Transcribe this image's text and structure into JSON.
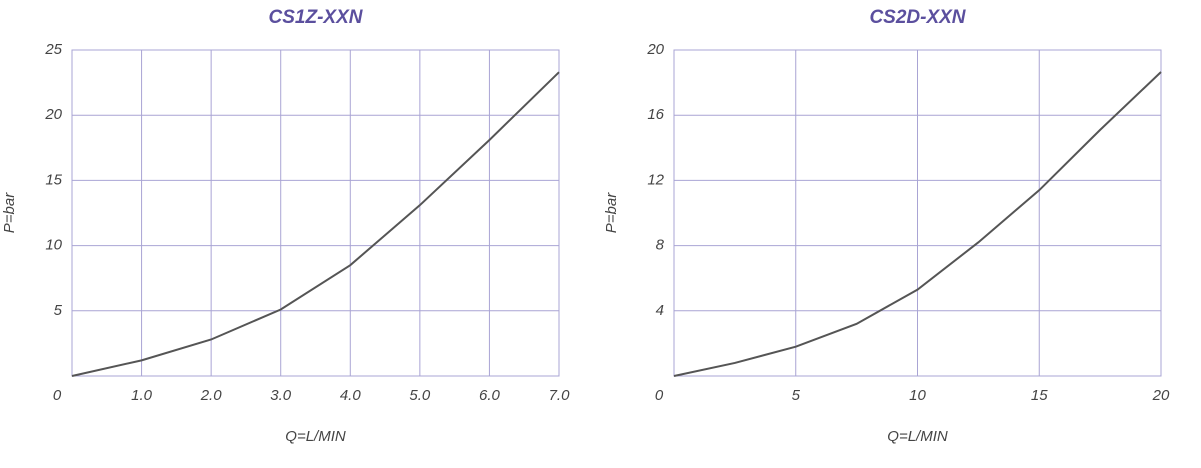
{
  "chart_data": [
    {
      "type": "line",
      "title": "CS1Z-XXN",
      "xlabel": "Q=L/MIN",
      "ylabel": "P=bar",
      "x": [
        0,
        1,
        2,
        3,
        4,
        5,
        6,
        7
      ],
      "series": [
        {
          "color": "#555555",
          "values": [
            0,
            1.2,
            2.8,
            5.1,
            8.5,
            13.1,
            18.1,
            23.3
          ]
        }
      ],
      "xlim": [
        0,
        7
      ],
      "ylim": [
        0,
        25
      ],
      "xticks": [
        0,
        {
          "value": 1,
          "label": "1.0"
        },
        {
          "value": 2,
          "label": "2.0"
        },
        {
          "value": 3,
          "label": "3.0"
        },
        {
          "value": 4,
          "label": "4.0"
        },
        {
          "value": 5,
          "label": "5.0"
        },
        {
          "value": 6,
          "label": "6.0"
        },
        {
          "value": 7,
          "label": "7.0"
        }
      ],
      "yticks": [
        5,
        10,
        15,
        20,
        25
      ],
      "grid": true,
      "grid_color": "#a9a4d4"
    },
    {
      "type": "line",
      "title": "CS2D-XXN",
      "xlabel": "Q=L/MIN",
      "ylabel": "P=bar",
      "x": [
        0,
        2.5,
        5,
        7.5,
        10,
        12.5,
        15,
        17.5,
        20
      ],
      "series": [
        {
          "color": "#555555",
          "values": [
            0,
            0.8,
            1.8,
            3.2,
            5.3,
            8.2,
            11.4,
            15.1,
            18.65
          ]
        }
      ],
      "xlim": [
        0,
        20
      ],
      "ylim": [
        0,
        20
      ],
      "xticks": [
        0,
        5,
        10,
        15,
        20
      ],
      "yticks": [
        4,
        8,
        12,
        16,
        20
      ],
      "grid": true,
      "grid_color": "#a9a4d4"
    }
  ]
}
